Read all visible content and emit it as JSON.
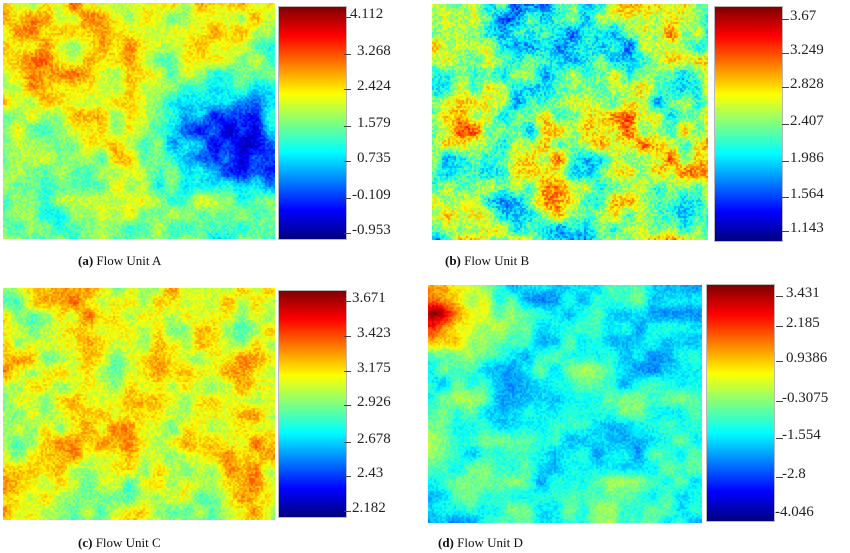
{
  "colormap": {
    "name": "jet",
    "stops": [
      "#00007f",
      "#0000ff",
      "#007fff",
      "#00ffff",
      "#7fff7f",
      "#ffff00",
      "#ff7f00",
      "#ff0000",
      "#7f0000"
    ]
  },
  "panels": [
    {
      "id": "a",
      "caption_letter": "(a)",
      "caption_text": "Flow Unit A",
      "colorbar_ticks": [
        "4.112",
        "3.268",
        "2.424",
        "1.579",
        "0.735",
        "-0.109",
        "-0.953"
      ],
      "pattern": "blue patch in lower right, warm upper left"
    },
    {
      "id": "b",
      "caption_letter": "(b)",
      "caption_text": "Flow Unit B",
      "colorbar_ticks": [
        "3.67",
        "3.249",
        "2.828",
        "2.407",
        "1.986",
        "1.564",
        "1.143"
      ],
      "pattern": "mixed blue and warm patches, red spot center right"
    },
    {
      "id": "c",
      "caption_letter": "(c)",
      "caption_text": "Flow Unit C",
      "colorbar_ticks": [
        "3.671",
        "3.423",
        "3.175",
        "2.926",
        "2.678",
        "2.43",
        "2.182"
      ],
      "pattern": "mostly yellow-orange with red streaks"
    },
    {
      "id": "d",
      "caption_letter": "(d)",
      "caption_text": "Flow Unit D",
      "colorbar_ticks": [
        "3.431",
        "2.185",
        "0.9386",
        "-0.3075",
        "-1.554",
        "-2.8",
        "-4.046"
      ],
      "pattern": "mostly cyan-blue with red upper left corner"
    }
  ]
}
